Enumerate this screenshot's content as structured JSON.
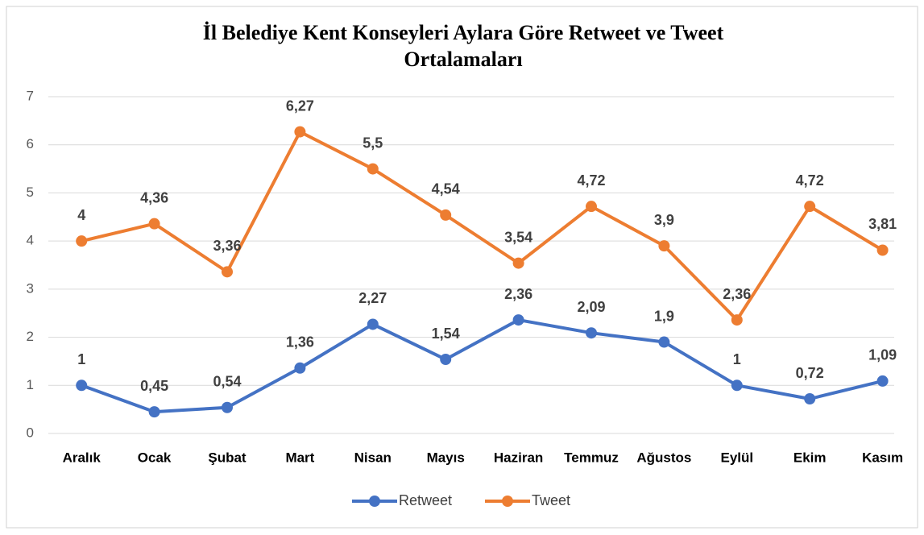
{
  "chart_data": {
    "type": "line",
    "title": "İl Belediye Kent Konseyleri Aylara Göre Retweet ve Tweet Ortalamaları",
    "categories": [
      "Aralık",
      "Ocak",
      "Şubat",
      "Mart",
      "Nisan",
      "Mayıs",
      "Haziran",
      "Temmuz",
      "Ağustos",
      "Eylül",
      "Ekim",
      "Kasım"
    ],
    "series": [
      {
        "name": "Retweet",
        "color": "#4472c4",
        "values": [
          1,
          0.45,
          0.54,
          1.36,
          2.27,
          1.54,
          2.36,
          2.09,
          1.9,
          1,
          0.72,
          1.09
        ],
        "value_labels": [
          "1",
          "0,45",
          "0,54",
          "1,36",
          "2,27",
          "1,54",
          "2,36",
          "2,09",
          "1,9",
          "1",
          "0,72",
          "1,09"
        ]
      },
      {
        "name": "Tweet",
        "color": "#ed7d31",
        "values": [
          4,
          4.36,
          3.36,
          6.27,
          5.5,
          4.54,
          3.54,
          4.72,
          3.9,
          2.36,
          4.72,
          3.81
        ],
        "value_labels": [
          "4",
          "4,36",
          "3,36",
          "6,27",
          "5,5",
          "4,54",
          "3,54",
          "4,72",
          "3,9",
          "2,36",
          "4,72",
          "3,81"
        ]
      }
    ],
    "ylim": [
      0,
      7
    ],
    "yticks": [
      0,
      1,
      2,
      3,
      4,
      5,
      6,
      7
    ],
    "grid": true,
    "legend": "bottom"
  }
}
